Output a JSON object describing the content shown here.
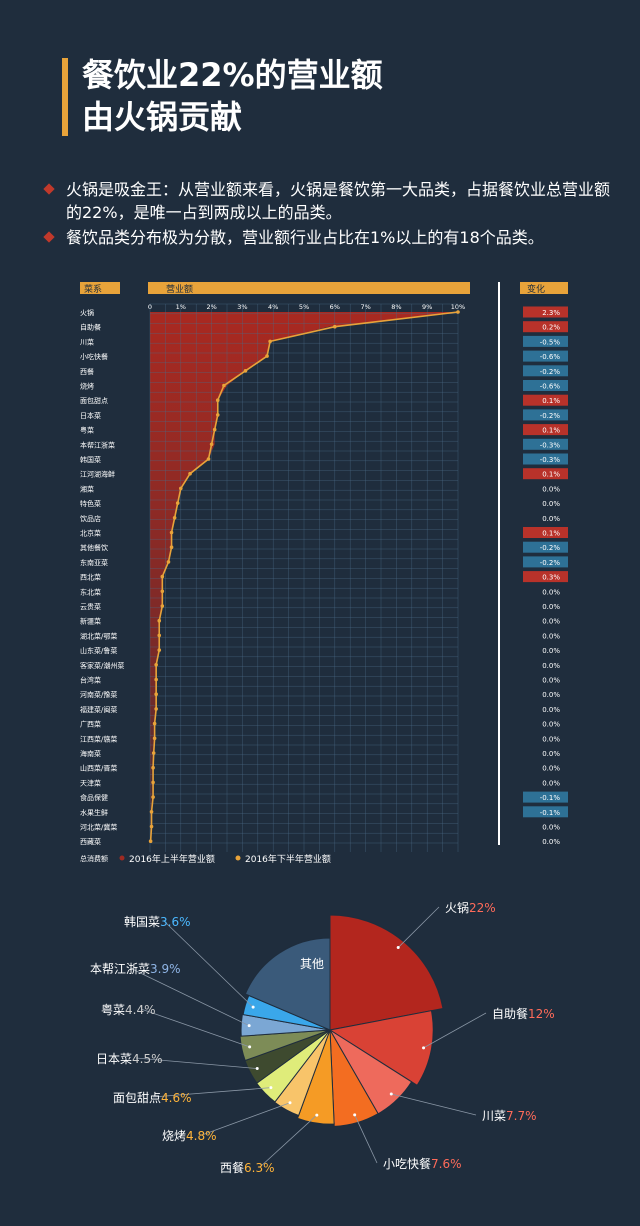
{
  "title": {
    "line1": "餐饮业22%的营业额",
    "line2": "由火锅贡献"
  },
  "bullets": [
    "火锅是吸金王：从营业额来看，火锅是餐饮第一大品类，占据餐饮业总营业额的22%，是唯一占到两成以上的品类。",
    "餐饮品类分布极为分散，营业额行业占比在1%以上的有18个品类。"
  ],
  "colors": {
    "bg": "#1f2d3d",
    "accent": "#e8a33a",
    "h1_fill": "#9e2a22",
    "h2_line": "#e8a33a",
    "grid": "#4b6a86",
    "neg": "#2e7196",
    "pos": "#b8322a"
  },
  "chart_data": [
    {
      "type": "area",
      "header_category": "菜系",
      "header_value": "营业额",
      "header_change": "变化",
      "footer_label": "总消费额",
      "x_ticks": [
        "0",
        "1%",
        "2%",
        "3%",
        "4%",
        "5%",
        "6%",
        "7%",
        "8%",
        "9%",
        "10%"
      ],
      "xlim": [
        0,
        10
      ],
      "legend": [
        "2016年上半年营业额",
        "2016年下半年营业额"
      ],
      "categories": [
        "火锅",
        "自助餐",
        "川菜",
        "小吃快餐",
        "西餐",
        "烧烤",
        "面包甜点",
        "日本菜",
        "粤菜",
        "本帮江浙菜",
        "韩国菜",
        "江河湖海鲜",
        "湘菜",
        "特色菜",
        "饮品店",
        "北京菜",
        "其他餐饮",
        "东南亚菜",
        "西北菜",
        "东北菜",
        "云贵菜",
        "新疆菜",
        "湖北菜/鄂菜",
        "山东菜/鲁菜",
        "客家菜/潮州菜",
        "台湾菜",
        "河南菜/豫菜",
        "福建菜/闽菜",
        "广西菜",
        "江西菜/赣菜",
        "海南菜",
        "山西菜/晋菜",
        "天津菜",
        "食品保健",
        "水果生鲜",
        "河北菜/冀菜",
        "西藏菜"
      ],
      "series": [
        {
          "name": "2016年上半年营业额",
          "values": [
            10,
            5.8,
            3.9,
            3.8,
            3.1,
            2.5,
            2.2,
            2.2,
            2.1,
            2.1,
            1.9,
            1.3,
            1.0,
            0.9,
            0.8,
            0.7,
            0.7,
            0.6,
            0.4,
            0.4,
            0.4,
            0.3,
            0.3,
            0.3,
            0.2,
            0.2,
            0.2,
            0.2,
            0.15,
            0.15,
            0.12,
            0.1,
            0.1,
            0.1,
            0.05,
            0.05,
            0.02
          ]
        },
        {
          "name": "2016年下半年营业额",
          "values": [
            10,
            6.0,
            3.9,
            3.8,
            3.1,
            2.4,
            2.2,
            2.2,
            2.1,
            2.0,
            1.9,
            1.3,
            1.0,
            0.9,
            0.8,
            0.7,
            0.7,
            0.6,
            0.4,
            0.4,
            0.4,
            0.3,
            0.3,
            0.3,
            0.2,
            0.2,
            0.2,
            0.2,
            0.15,
            0.15,
            0.12,
            0.1,
            0.1,
            0.1,
            0.05,
            0.05,
            0.02
          ]
        }
      ],
      "changes": [
        "2.3%",
        "0.2%",
        "-0.5%",
        "-0.6%",
        "-0.2%",
        "-0.6%",
        "0.1%",
        "-0.2%",
        "0.1%",
        "-0.3%",
        "-0.3%",
        "0.1%",
        "0.0%",
        "0.0%",
        "0.0%",
        "0.1%",
        "-0.2%",
        "-0.2%",
        "0.3%",
        "0.0%",
        "0.0%",
        "0.0%",
        "0.0%",
        "0.0%",
        "0.0%",
        "0.0%",
        "0.0%",
        "0.0%",
        "0.0%",
        "0.0%",
        "0.0%",
        "0.0%",
        "0.0%",
        "-0.1%",
        "-0.1%",
        "0.0%",
        "0.0%"
      ]
    },
    {
      "type": "pie",
      "labels": [
        "火锅",
        "自助餐",
        "川菜",
        "小吃快餐",
        "西餐",
        "烧烤",
        "面包甜点",
        "日本菜",
        "粤菜",
        "本帮江浙菜",
        "韩国菜",
        "其他"
      ],
      "values": [
        22,
        12,
        7.7,
        7.6,
        6.3,
        4.8,
        4.6,
        4.5,
        4.4,
        3.9,
        3.6,
        18.6
      ],
      "value_labels": [
        "22%",
        "12%",
        "7.7%",
        "7.6%",
        "6.3%",
        "4.8%",
        "4.6%",
        "4.5%",
        "4.4%",
        "3.9%",
        "3.6%",
        ""
      ],
      "colors": [
        "#b3261e",
        "#d94235",
        "#ee6a5c",
        "#f36d21",
        "#f59b25",
        "#f8c46a",
        "#dfec7a",
        "#3e4a2f",
        "#7d8c57",
        "#7ba7d4",
        "#3aa7ea",
        "#3a5a7a"
      ]
    }
  ]
}
